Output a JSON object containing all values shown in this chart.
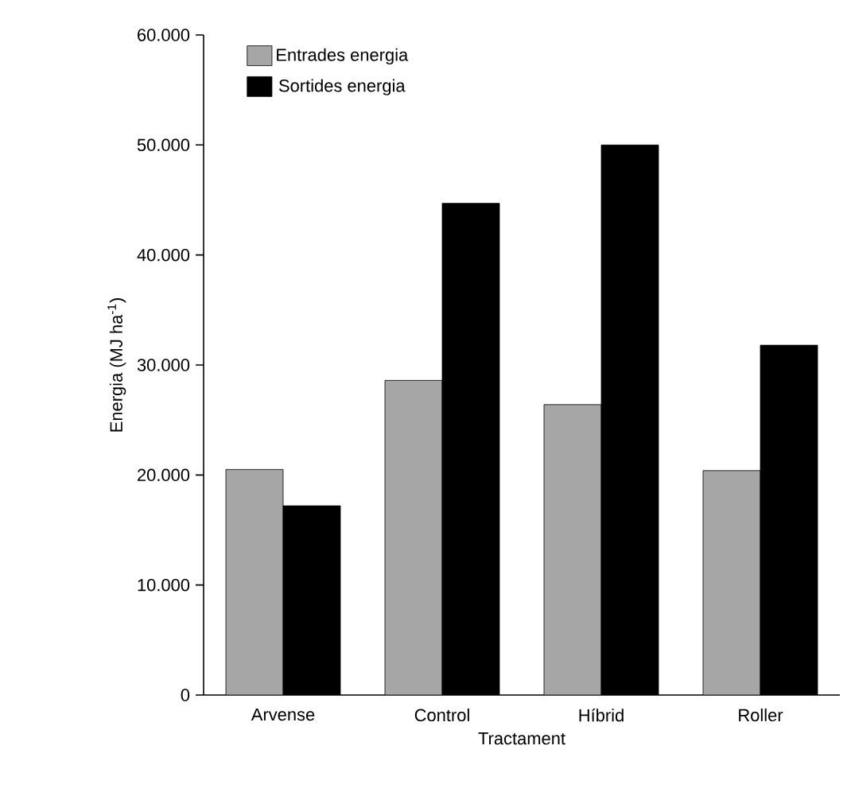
{
  "chart_data": {
    "type": "bar",
    "xlabel": "Tractament",
    "ylabel": "Energia (MJ ha$^{-1}$)",
    "categories": [
      "Arvense",
      "Control",
      "Híbrid",
      "Roller"
    ],
    "series": [
      {
        "name": "Entrades energia",
        "color": "#a6a6a6",
        "values": [
          20500,
          28600,
          26400,
          20400
        ]
      },
      {
        "name": "Sortides energia",
        "color": "#000000",
        "values": [
          17200,
          44700,
          50000,
          31800
        ]
      }
    ],
    "ylim": [
      0,
      60000
    ],
    "yticks": [
      {
        "value": 0,
        "label": "0"
      },
      {
        "value": 10000,
        "label": "10.000"
      },
      {
        "value": 20000,
        "label": "20.000"
      },
      {
        "value": 30000,
        "label": "30.000"
      },
      {
        "value": 40000,
        "label": "40.000"
      },
      {
        "value": 50000,
        "label": "50.000"
      },
      {
        "value": 60000,
        "label": "60.000"
      }
    ],
    "legend": "top left"
  }
}
